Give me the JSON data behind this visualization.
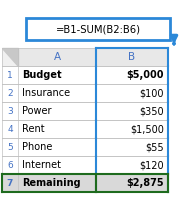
{
  "formula": "=B1-SUM(B2:B6)",
  "col_headers": [
    "A",
    "B"
  ],
  "row_numbers": [
    "1",
    "2",
    "3",
    "4",
    "5",
    "6",
    "7"
  ],
  "col_a": [
    "Budget",
    "Insurance",
    "Power",
    "Rent",
    "Phone",
    "Internet",
    "Remaining"
  ],
  "col_b": [
    "$5,000",
    "$100",
    "$350",
    "$1,500",
    "$55",
    "$120",
    "$2,875"
  ],
  "col_a_bold": [
    true,
    false,
    false,
    false,
    false,
    false,
    true
  ],
  "col_b_bold": [
    true,
    false,
    false,
    false,
    false,
    false,
    true
  ],
  "row7_bg": "#d9d9d9",
  "header_bg": "#e8e8e8",
  "formula_box_color": "#2b88d8",
  "grid_color": "#c0c0c0",
  "col_header_color": "#4472c4",
  "row_num_color": "#4472c4",
  "row7_border_color": "#1e6b1e",
  "col_b_border_color": "#2b88d8",
  "arrow_color": "#2b88d8",
  "text_color": "#000000",
  "bg_color": "#ffffff",
  "corner_bg": "#f0f0f0"
}
